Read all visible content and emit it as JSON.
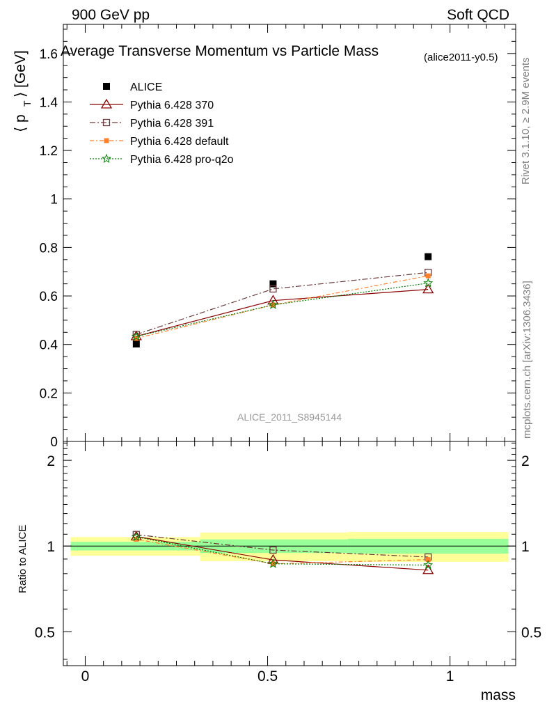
{
  "header": {
    "left": "900 GeV pp",
    "right": "Soft QCD"
  },
  "side_labels": {
    "rivet": "Rivet 3.1.10, ≥ 2.9M events",
    "mcplots": "mcplots.cern.ch [arXiv:1306.3436]"
  },
  "watermark": "ALICE_2011_S8945144",
  "colors": {
    "alice": "#000000",
    "p370": "#8b0000",
    "p391": "#6b3a3a",
    "default": "#ff7f2a",
    "proq2o": "#007f00",
    "band_inner": "#99ff99",
    "band_outer": "#ffff99"
  },
  "chart_data": [
    {
      "type": "line",
      "title": "Average Transverse Momentum vs Particle Mass",
      "subtitle": "(alice2011-y0.5)",
      "ylabel": "⟨ p_T ⟩ [GeV]",
      "xlim": [
        -0.06,
        1.18
      ],
      "ylim": [
        0,
        1.72
      ],
      "yticks": [
        0,
        0.2,
        0.4,
        0.6,
        0.8,
        1,
        1.2,
        1.4,
        1.6
      ],
      "ytick_labels": [
        "0",
        "0.2",
        "0.4",
        "0.6",
        "0.8",
        "1",
        "1.2",
        "1.4",
        "1.6"
      ],
      "x": [
        0.14,
        0.515,
        0.94
      ],
      "legend_position": "top-left",
      "series": [
        {
          "name": "ALICE",
          "marker": "square-filled",
          "values": [
            0.402,
            0.65,
            0.762
          ]
        },
        {
          "name": "Pythia 6.428 370",
          "marker": "triangle-open",
          "style": "solid",
          "values": [
            0.434,
            0.581,
            0.627
          ]
        },
        {
          "name": "Pythia 6.428 391",
          "marker": "square-open",
          "style": "dashdot",
          "values": [
            0.441,
            0.629,
            0.697
          ]
        },
        {
          "name": "Pythia 6.428 default",
          "marker": "square-filled-small",
          "style": "dashdot2",
          "values": [
            0.425,
            0.563,
            0.683
          ]
        },
        {
          "name": "Pythia 6.428 pro-q2o",
          "marker": "star",
          "style": "dotted",
          "values": [
            0.433,
            0.563,
            0.653
          ]
        }
      ]
    },
    {
      "type": "line",
      "ylabel": "Ratio to ALICE",
      "xlabel": "mass",
      "xlim": [
        -0.06,
        1.18
      ],
      "ylim": [
        0.38,
        2.33
      ],
      "scale": "log",
      "xticks": [
        0,
        0.5,
        1
      ],
      "xtick_labels": [
        "0",
        "0.5",
        "1"
      ],
      "yticks": [
        0.5,
        1,
        2
      ],
      "ytick_labels": [
        "0.5",
        "1",
        "2"
      ],
      "x": [
        0.14,
        0.515,
        0.94
      ],
      "bands": [
        {
          "x_range": [
            -0.04,
            0.315
          ],
          "inner": [
            0.965,
            1.035
          ],
          "outer": [
            0.925,
            1.075
          ]
        },
        {
          "x_range": [
            0.315,
            0.72
          ],
          "inner": [
            0.945,
            1.055
          ],
          "outer": [
            0.885,
            1.115
          ]
        },
        {
          "x_range": [
            0.72,
            1.16
          ],
          "inner": [
            0.94,
            1.06
          ],
          "outer": [
            0.88,
            1.12
          ]
        }
      ],
      "series": [
        {
          "name": "Pythia 6.428 370",
          "values": [
            1.08,
            0.894,
            0.823
          ]
        },
        {
          "name": "Pythia 6.428 391",
          "values": [
            1.097,
            0.968,
            0.915
          ]
        },
        {
          "name": "Pythia 6.428 default",
          "values": [
            1.057,
            0.866,
            0.896
          ]
        },
        {
          "name": "Pythia 6.428 pro-q2o",
          "values": [
            1.077,
            0.866,
            0.857
          ]
        }
      ]
    }
  ]
}
